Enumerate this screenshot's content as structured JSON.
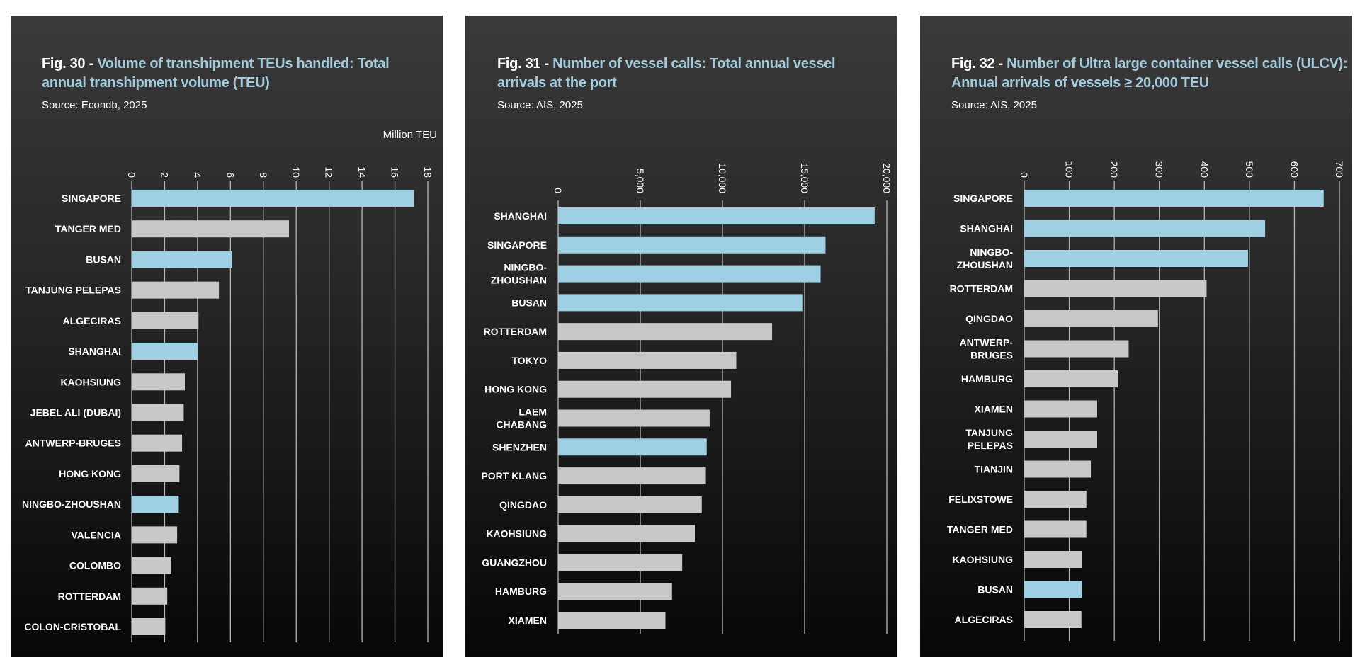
{
  "colors": {
    "highlight": "#9ecfe3",
    "default": "#c8c8c8",
    "title_accent": "#a3cbdc",
    "gridline": "#b5b5b5"
  },
  "chart_data": [
    {
      "type": "bar",
      "orientation": "horizontal",
      "fig": "Fig. 30 -",
      "title": "Volume of transhipment TEUs handled: Total annual transhipment volume (TEU)",
      "source": "Source: Econdb, 2025",
      "unit": "Million TEU",
      "xlim": [
        0,
        18
      ],
      "ticks": [
        "0",
        "2",
        "4",
        "6",
        "8",
        "10",
        "12",
        "14",
        "16",
        "18"
      ],
      "tick_values": [
        0,
        2,
        4,
        6,
        8,
        10,
        12,
        14,
        16,
        18
      ],
      "grid": true,
      "categories": [
        "SINGAPORE",
        "TANGER MED",
        "BUSAN",
        "TANJUNG PELEPAS",
        "ALGECIRAS",
        "SHANGHAI",
        "KAOHSIUNG",
        "JEBEL ALI (DUBAI)",
        "ANTWERP-BRUGES",
        "HONG KONG",
        "NINGBO-ZHOUSHAN",
        "VALENCIA",
        "COLOMBO",
        "ROTTERDAM",
        "COLON-CRISTOBAL"
      ],
      "values": [
        17.15,
        9.56,
        6.1,
        5.3,
        4.06,
        4.02,
        3.23,
        3.16,
        3.06,
        2.9,
        2.86,
        2.76,
        2.41,
        2.16,
        2.04
      ],
      "highlighted": [
        true,
        false,
        true,
        false,
        false,
        true,
        false,
        false,
        false,
        false,
        true,
        false,
        false,
        false,
        false
      ]
    },
    {
      "type": "bar",
      "orientation": "horizontal",
      "fig": "Fig. 31 -",
      "title": "Number of vessel calls: Total annual vessel arrivals at the port",
      "source": "Source: AIS, 2025",
      "unit": "",
      "xlim": [
        0,
        20000
      ],
      "ticks": [
        "0",
        "5,000",
        "10,000",
        "15,000",
        "20,000"
      ],
      "tick_values": [
        0,
        5000,
        10000,
        15000,
        20000
      ],
      "grid": true,
      "categories": [
        "SHANGHAI",
        "SINGAPORE",
        "NINGBO-\nZHOUSHAN",
        "BUSAN",
        "ROTTERDAM",
        "TOKYO",
        "HONG KONG",
        "LAEM\nCHABANG",
        "SHENZHEN",
        "PORT KLANG",
        "QINGDAO",
        "KAOHSIUNG",
        "GUANGZHOU",
        "HAMBURG",
        "XIAMEN"
      ],
      "values": [
        19260,
        16270,
        15970,
        14860,
        13020,
        10840,
        10520,
        9220,
        9040,
        8990,
        8740,
        8320,
        7550,
        6930,
        6530
      ],
      "highlighted": [
        true,
        true,
        true,
        true,
        false,
        false,
        false,
        false,
        true,
        false,
        false,
        false,
        false,
        false,
        false
      ]
    },
    {
      "type": "bar",
      "orientation": "horizontal",
      "fig": "Fig. 32 -",
      "title": "Number of Ultra large container vessel calls (ULCV): Annual arrivals of vessels ≥ 20,000 TEU",
      "source": "Source: AIS, 2025",
      "unit": "",
      "xlim": [
        0,
        700
      ],
      "ticks": [
        "0",
        "100",
        "200",
        "300",
        "400",
        "500",
        "600",
        "700"
      ],
      "tick_values": [
        0,
        100,
        200,
        300,
        400,
        500,
        600,
        700
      ],
      "grid": true,
      "categories": [
        "SINGAPORE",
        "SHANGHAI",
        "NINGBO-\nZHOUSHAN",
        "ROTTERDAM",
        "QINGDAO",
        "ANTWERP-\nBRUGES",
        "HAMBURG",
        "XIAMEN",
        "TANJUNG\nPELEPAS",
        "TIANJIN",
        "FELIXSTOWE",
        "TANGER MED",
        "KAOHSIUNG",
        "BUSAN",
        "ALGECIRAS"
      ],
      "values": [
        665,
        535,
        497,
        405,
        297,
        232,
        208,
        162,
        162,
        148,
        138,
        138,
        129,
        128,
        127
      ],
      "highlighted": [
        true,
        true,
        true,
        false,
        false,
        false,
        false,
        false,
        false,
        false,
        false,
        false,
        false,
        true,
        false
      ]
    }
  ]
}
